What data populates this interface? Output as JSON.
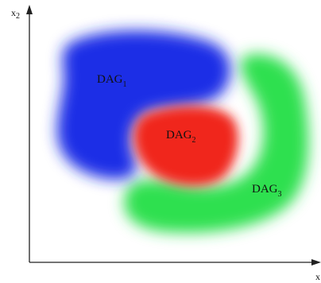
{
  "axes": {
    "y_label": "x",
    "y_sub": "2",
    "x_label": "x"
  },
  "regions": [
    {
      "label": "DAG",
      "sub": "1",
      "color": "#1b2fe6"
    },
    {
      "label": "DAG",
      "sub": "2",
      "color": "#f0251b"
    },
    {
      "label": "DAG",
      "sub": "3",
      "color": "#2fe050"
    }
  ],
  "colors": {
    "axis": "#222222",
    "background": "#ffffff"
  }
}
